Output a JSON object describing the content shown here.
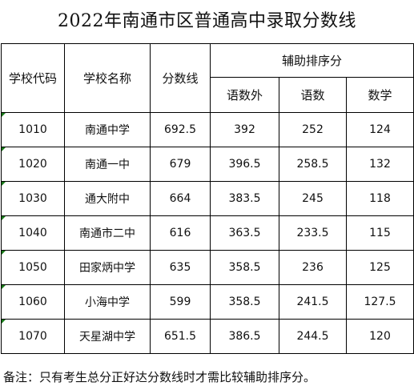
{
  "title": "2022年南通市区普通高中录取分数线",
  "headers": {
    "code": "学校代码",
    "name": "学校名称",
    "score": "分数线",
    "aux": "辅助排序分",
    "aux_sub": [
      "语数外",
      "语数",
      "数学"
    ]
  },
  "rows": [
    {
      "code": "1010",
      "name": "南通中学",
      "score": "692.5",
      "ysw": "392",
      "ys": "252",
      "sx": "124"
    },
    {
      "code": "1020",
      "name": "南通一中",
      "score": "679",
      "ysw": "396.5",
      "ys": "258.5",
      "sx": "132"
    },
    {
      "code": "1030",
      "name": "通大附中",
      "score": "664",
      "ysw": "383.5",
      "ys": "245",
      "sx": "118"
    },
    {
      "code": "1040",
      "name": "南通市二中",
      "score": "616",
      "ysw": "363.5",
      "ys": "233.5",
      "sx": "115"
    },
    {
      "code": "1050",
      "name": "田家炳中学",
      "score": "635",
      "ysw": "358.5",
      "ys": "236",
      "sx": "125"
    },
    {
      "code": "1060",
      "name": "小海中学",
      "score": "599",
      "ysw": "358.5",
      "ys": "241.5",
      "sx": "127.5"
    },
    {
      "code": "1070",
      "name": "天星湖中学",
      "score": "651.5",
      "ysw": "386.5",
      "ys": "244.5",
      "sx": "120"
    }
  ],
  "note": "备注：只有考生总分正好达分数线时才需比较辅助排序分。"
}
